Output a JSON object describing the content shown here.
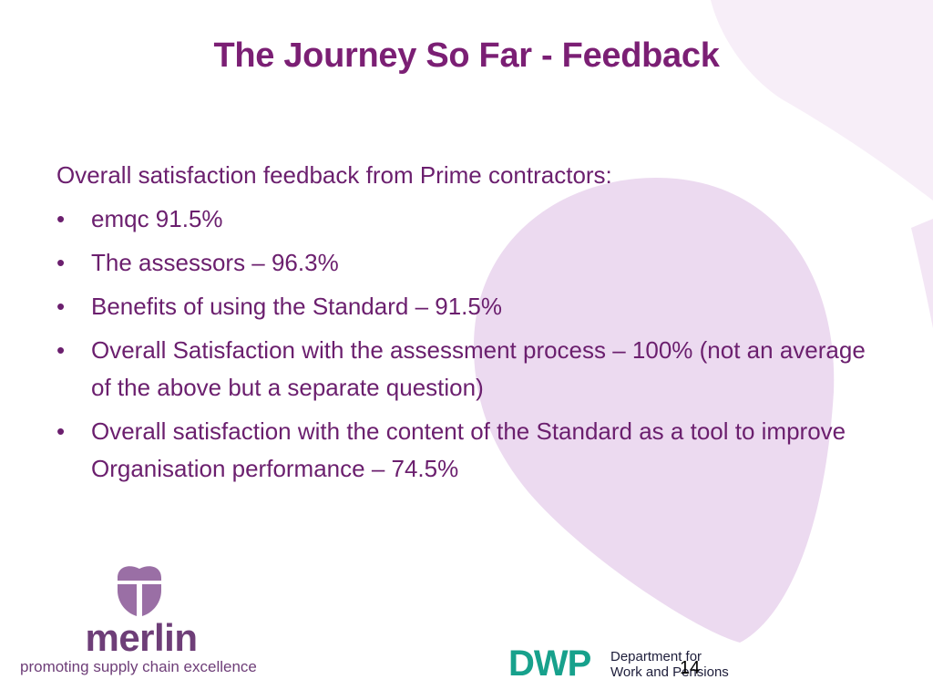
{
  "slide": {
    "title": "The Journey So Far - Feedback",
    "intro": "Overall satisfaction feedback from Prime contractors:",
    "bullet_symbol": "•",
    "bullets": [
      "emqc 91.5%",
      "The assessors – 96.3%",
      "Benefits of using the Standard – 91.5%",
      "Overall Satisfaction with the assessment  process – 100% (not an average of the above but a separate question)",
      "Overall satisfaction with the content of the Standard as a tool to improve Organisation performance – 74.5%"
    ],
    "page_number": "14"
  },
  "merlin": {
    "name": "merlin",
    "tagline": "promoting supply chain excellence",
    "icon": "merlin-heart-icon"
  },
  "dwp": {
    "acronym": "DWP",
    "line1": "Department for",
    "line2": "Work and Pensions"
  },
  "colors": {
    "title": "#7b1f74",
    "text": "#6b1f6e",
    "background_shape": "#ecdaf0",
    "merlin": "#6e3e78",
    "dwp_green": "#17a18c"
  }
}
